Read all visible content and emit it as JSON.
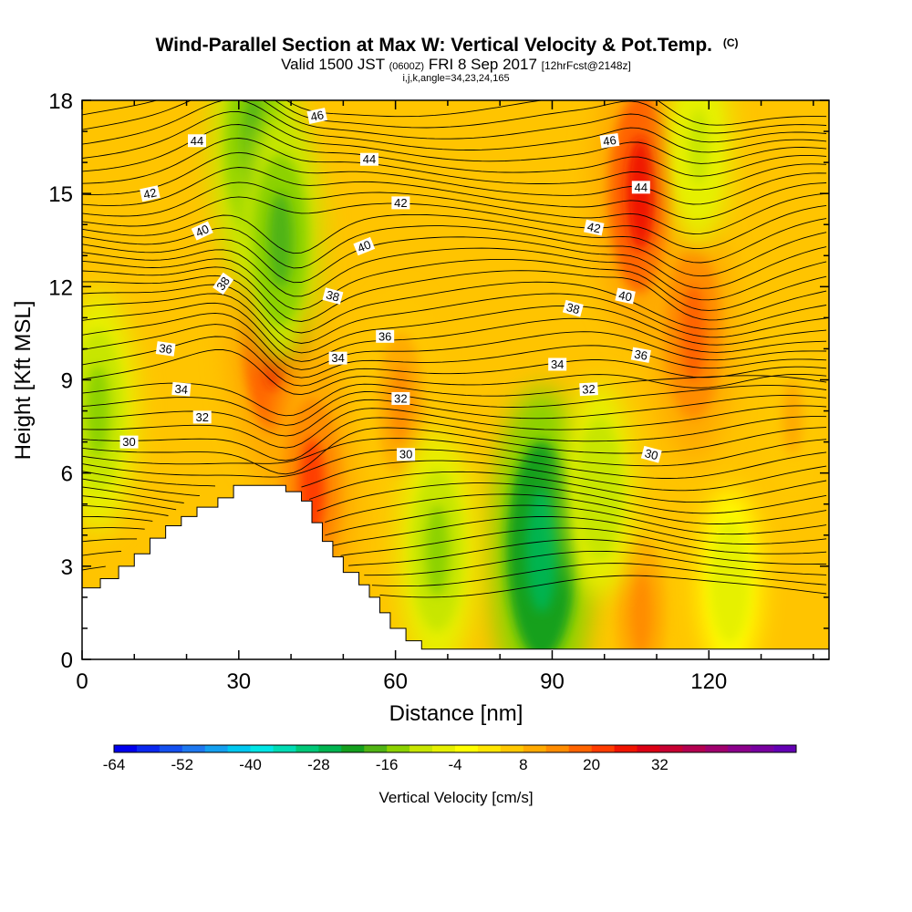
{
  "chart_data": {
    "type": "heatmap",
    "title": "Wind-Parallel Section at Max W: Vertical Velocity & Pot.Temp.",
    "title_mark": "(C)",
    "subtitle": {
      "prefix": "Valid 1500 JST",
      "utc": "(0600Z)",
      "date": "FRI 8 Sep 2017",
      "forecast": "[12hrFcst@2148z]"
    },
    "params": "i,j,k,angle=34,23,24,165",
    "xlabel": "Distance [nm]",
    "ylabel": "Height [Kft MSL]",
    "xlim": [
      0,
      143
    ],
    "ylim": [
      0,
      18
    ],
    "x_ticks": [
      "0",
      "30",
      "60",
      "90",
      "120"
    ],
    "y_ticks": [
      "0",
      "3",
      "6",
      "9",
      "12",
      "15",
      "18"
    ],
    "colorbar": {
      "label": "Vertical Velocity [cm/s]",
      "min": -64,
      "step": 4,
      "colors": [
        "#0000ee",
        "#0a28f0",
        "#1450f0",
        "#1e78f0",
        "#14a0f0",
        "#00c8f0",
        "#00e6e6",
        "#00dcb4",
        "#00c878",
        "#00b450",
        "#14a01e",
        "#50b414",
        "#8cd200",
        "#c8e600",
        "#e6f000",
        "#ffff00",
        "#ffe600",
        "#ffc800",
        "#ffaa00",
        "#ff8c00",
        "#ff6400",
        "#ff3c00",
        "#f01400",
        "#dc0014",
        "#c80032",
        "#b40050",
        "#a0006e",
        "#8c008c",
        "#7800a0",
        "#6400b4"
      ],
      "tick_labels": [
        "-64",
        "-52",
        "-40",
        "-28",
        "-16",
        "-4",
        "8",
        "20",
        "32"
      ]
    },
    "vv_features": [
      {
        "kind": "updraft",
        "x": 37,
        "y": 10.5,
        "value": 24
      },
      {
        "kind": "updraft",
        "x": 44,
        "y": 5.5,
        "value": 20
      },
      {
        "kind": "updraft",
        "x": 107,
        "y": 15.0,
        "value": 24
      },
      {
        "kind": "updraft",
        "x": 117,
        "y": 10.5,
        "value": 18
      },
      {
        "kind": "updraft",
        "x": 107,
        "y": 1.5,
        "value": 14
      },
      {
        "kind": "updraft",
        "x": 61,
        "y": 8.2,
        "value": 12
      },
      {
        "kind": "updraft",
        "x": 136,
        "y": 7.8,
        "value": 10
      },
      {
        "kind": "downdraft",
        "x": 88,
        "y": 3.5,
        "value": -28
      },
      {
        "kind": "downdraft",
        "x": 68,
        "y": 3.5,
        "value": -16
      },
      {
        "kind": "downdraft",
        "x": 99,
        "y": 5.5,
        "value": -12
      },
      {
        "kind": "downdraft",
        "x": 33,
        "y": 16.5,
        "value": -20
      },
      {
        "kind": "downdraft",
        "x": 38,
        "y": 13.5,
        "value": -18
      },
      {
        "kind": "downdraft",
        "x": 3,
        "y": 8.0,
        "value": -16
      },
      {
        "kind": "downdraft",
        "x": 118,
        "y": 16.5,
        "value": -10
      },
      {
        "kind": "downdraft",
        "x": 124,
        "y": 2.5,
        "value": -8
      }
    ],
    "terrain": [
      [
        0,
        2.3
      ],
      [
        3.5,
        2.6
      ],
      [
        7,
        3.0
      ],
      [
        10,
        3.4
      ],
      [
        13,
        3.9
      ],
      [
        16,
        4.3
      ],
      [
        19,
        4.6
      ],
      [
        22,
        4.9
      ],
      [
        26,
        5.2
      ],
      [
        29,
        5.6
      ],
      [
        36,
        5.6
      ],
      [
        39,
        5.4
      ],
      [
        42,
        5.1
      ],
      [
        44,
        4.4
      ],
      [
        46,
        3.8
      ],
      [
        48,
        3.3
      ],
      [
        50,
        2.8
      ],
      [
        53,
        2.4
      ],
      [
        55,
        2.0
      ],
      [
        57,
        1.5
      ],
      [
        59,
        1.0
      ],
      [
        62,
        0.6
      ],
      [
        65,
        0.33
      ],
      [
        143,
        0.33
      ]
    ],
    "theta_labels": [
      {
        "text": "46",
        "x": 45,
        "y": 17.5,
        "rot": -12
      },
      {
        "text": "44",
        "x": 22,
        "y": 16.7,
        "rot": 0
      },
      {
        "text": "44",
        "x": 55,
        "y": 16.1,
        "rot": 0
      },
      {
        "text": "46",
        "x": 101,
        "y": 16.7,
        "rot": -8
      },
      {
        "text": "44",
        "x": 107,
        "y": 15.2,
        "rot": 0
      },
      {
        "text": "42",
        "x": 13,
        "y": 15.0,
        "rot": -12
      },
      {
        "text": "42",
        "x": 61,
        "y": 14.7,
        "rot": 0
      },
      {
        "text": "42",
        "x": 98,
        "y": 13.9,
        "rot": 12
      },
      {
        "text": "40",
        "x": 23,
        "y": 13.8,
        "rot": -25
      },
      {
        "text": "40",
        "x": 54,
        "y": 13.3,
        "rot": -22
      },
      {
        "text": "38",
        "x": 27,
        "y": 12.1,
        "rot": -55
      },
      {
        "text": "38",
        "x": 48,
        "y": 11.7,
        "rot": 15
      },
      {
        "text": "40",
        "x": 104,
        "y": 11.7,
        "rot": 12
      },
      {
        "text": "38",
        "x": 94,
        "y": 11.3,
        "rot": 15
      },
      {
        "text": "36",
        "x": 16,
        "y": 10.0,
        "rot": 8
      },
      {
        "text": "36",
        "x": 58,
        "y": 10.4,
        "rot": 0
      },
      {
        "text": "36",
        "x": 107,
        "y": 9.8,
        "rot": 10
      },
      {
        "text": "34",
        "x": 49,
        "y": 9.7,
        "rot": 0
      },
      {
        "text": "34",
        "x": 91,
        "y": 9.5,
        "rot": 0
      },
      {
        "text": "34",
        "x": 19,
        "y": 8.7,
        "rot": 5
      },
      {
        "text": "32",
        "x": 61,
        "y": 8.4,
        "rot": 0
      },
      {
        "text": "32",
        "x": 97,
        "y": 8.7,
        "rot": -3
      },
      {
        "text": "32",
        "x": 23,
        "y": 7.8,
        "rot": 0
      },
      {
        "text": "30",
        "x": 9,
        "y": 7.0,
        "rot": 0
      },
      {
        "text": "30",
        "x": 62,
        "y": 6.6,
        "rot": 0
      },
      {
        "text": "30",
        "x": 109,
        "y": 6.6,
        "rot": 15
      }
    ]
  }
}
